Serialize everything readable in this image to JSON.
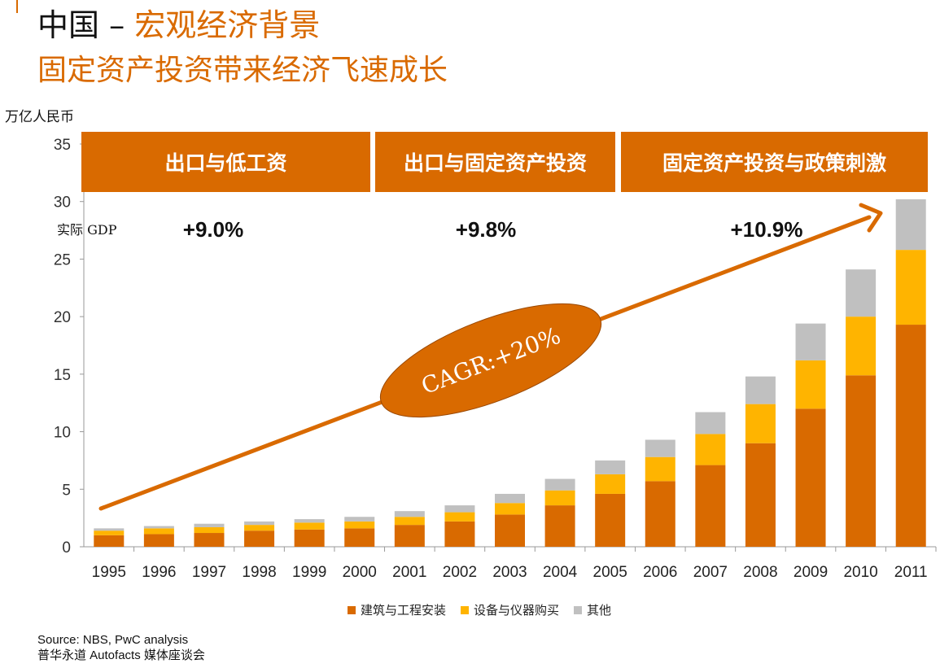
{
  "slide": {
    "title_black": "中国",
    "title_sep": "–",
    "title_orange": "宏观经济背景",
    "subtitle": "固定资产投资带来经济飞速成长",
    "unit_label": "万亿人民币",
    "source_line1": "Source: NBS, PwC analysis",
    "source_line2": "普华永道 Autofacts 媒体座谈会"
  },
  "colors": {
    "accent": "#d96a00",
    "construction": "#d96a00",
    "equipment": "#ffb400",
    "other": "#c0c0c0",
    "banner_text": "#ffffff"
  },
  "chart_data": {
    "type": "bar",
    "stacked": true,
    "categories": [
      "1995",
      "1996",
      "1997",
      "1998",
      "1999",
      "2000",
      "2001",
      "2002",
      "2003",
      "2004",
      "2005",
      "2006",
      "2007",
      "2008",
      "2009",
      "2010",
      "2011"
    ],
    "series": [
      {
        "name": "建筑与工程安装",
        "color": "#d96a00",
        "values": [
          1.0,
          1.1,
          1.2,
          1.4,
          1.5,
          1.6,
          1.9,
          2.2,
          2.8,
          3.6,
          4.6,
          5.7,
          7.1,
          9.0,
          12.0,
          14.9,
          19.3
        ]
      },
      {
        "name": "设备与仪器购买",
        "color": "#ffb400",
        "values": [
          0.4,
          0.5,
          0.5,
          0.5,
          0.6,
          0.6,
          0.7,
          0.8,
          1.0,
          1.3,
          1.7,
          2.1,
          2.7,
          3.4,
          4.2,
          5.1,
          6.5
        ]
      },
      {
        "name": "其他",
        "color": "#c0c0c0",
        "values": [
          0.2,
          0.2,
          0.3,
          0.3,
          0.3,
          0.4,
          0.5,
          0.6,
          0.8,
          1.0,
          1.2,
          1.5,
          1.9,
          2.4,
          3.2,
          4.1,
          4.4
        ]
      }
    ],
    "ylim": [
      0,
      35
    ],
    "yticks": [
      0,
      5,
      10,
      15,
      20,
      25,
      30,
      35
    ],
    "ylabel": "万亿人民币",
    "grid": false,
    "legend": "bottom",
    "periods": [
      {
        "label": "出口与低工资",
        "gdp_growth": "+9.0%"
      },
      {
        "label": "出口与固定资产投资",
        "gdp_growth": "+9.8%"
      },
      {
        "label": "固定资产投资与政策刺激",
        "gdp_growth": "+10.9%"
      }
    ],
    "gdp_row_label": "实际 GDP",
    "trend_annotation": "CAGR:+20%"
  }
}
